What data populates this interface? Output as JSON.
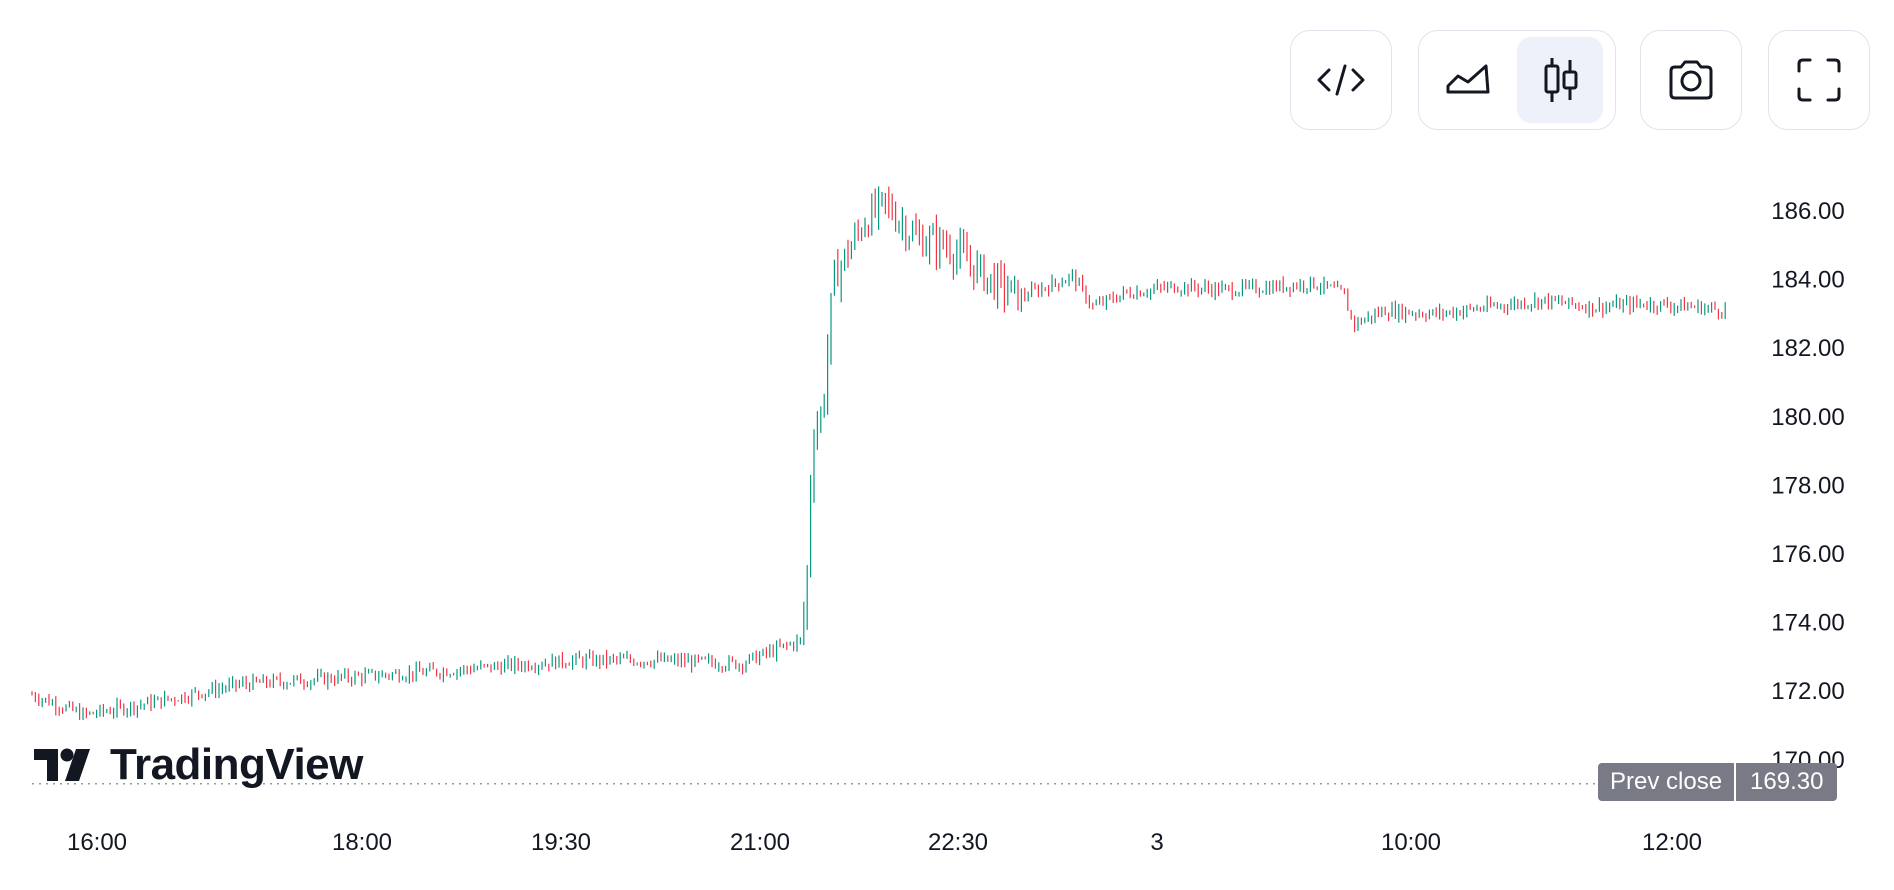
{
  "toolbar": {
    "embed_icon": "code-embed-icon",
    "area_icon": "area-chart-icon",
    "candles_icon": "candlestick-chart-icon",
    "camera_icon": "camera-icon",
    "fullscreen_icon": "fullscreen-icon",
    "active_chart_style": "candles"
  },
  "logo": {
    "text": "TradingView",
    "icon": "tradingview-logo-icon"
  },
  "prev_close": {
    "label": "Prev close",
    "value": "169.30"
  },
  "colors": {
    "up": "#089981",
    "down": "#f23645",
    "label_bg": "#787b86",
    "active_bg": "#eef1fa"
  },
  "chart_data": {
    "type": "candlestick",
    "y_ticks": [
      "186.00",
      "184.00",
      "182.00",
      "180.00",
      "178.00",
      "176.00",
      "174.00",
      "172.00",
      "170.00"
    ],
    "x_ticks": [
      "16:00",
      "18:00",
      "19:30",
      "21:00",
      "22:30",
      "3",
      "10:00",
      "12:00"
    ],
    "ylim": [
      169.3,
      186.6
    ],
    "prev_close": 169.3,
    "approx_close_path": [
      [
        0,
        171.9
      ],
      [
        0.05,
        171.3
      ],
      [
        0.12,
        171.7
      ],
      [
        0.2,
        172.2
      ],
      [
        0.3,
        172.4
      ],
      [
        0.4,
        172.6
      ],
      [
        0.52,
        172.9
      ],
      [
        0.6,
        172.9
      ],
      [
        0.68,
        172.8
      ],
      [
        0.74,
        173.5
      ],
      [
        0.745,
        175.5
      ],
      [
        0.75,
        179.5
      ],
      [
        0.76,
        180.2
      ],
      [
        0.77,
        184.0
      ],
      [
        0.8,
        185.7
      ],
      [
        0.82,
        186.2
      ],
      [
        0.85,
        185.2
      ],
      [
        0.88,
        185.0
      ],
      [
        0.92,
        184.0
      ],
      [
        0.95,
        183.5
      ],
      [
        1.0,
        184.1
      ],
      [
        1.02,
        183.2
      ],
      [
        1.05,
        183.6
      ],
      [
        1.1,
        183.8
      ],
      [
        1.15,
        183.7
      ],
      [
        1.2,
        183.8
      ],
      [
        1.23,
        183.9
      ],
      [
        1.26,
        183.6
      ],
      [
        1.27,
        182.7
      ],
      [
        1.3,
        183.1
      ],
      [
        1.35,
        183.0
      ],
      [
        1.4,
        183.2
      ],
      [
        1.45,
        183.4
      ],
      [
        1.5,
        183.2
      ],
      [
        1.55,
        183.3
      ],
      [
        1.6,
        183.2
      ],
      [
        1.63,
        183.1
      ]
    ]
  }
}
